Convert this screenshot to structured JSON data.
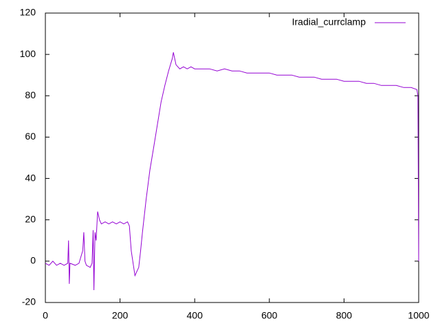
{
  "chart_data": {
    "type": "line",
    "x": [
      0,
      10,
      20,
      30,
      40,
      50,
      60,
      62,
      64,
      66,
      80,
      90,
      100,
      103,
      106,
      110,
      120,
      125,
      128,
      130,
      133,
      136,
      140,
      145,
      150,
      160,
      170,
      180,
      190,
      200,
      210,
      220,
      225,
      230,
      240,
      245,
      250,
      255,
      260,
      270,
      280,
      290,
      300,
      310,
      320,
      330,
      340,
      343,
      350,
      360,
      370,
      380,
      390,
      400,
      420,
      440,
      460,
      480,
      500,
      520,
      540,
      560,
      580,
      600,
      620,
      640,
      660,
      680,
      700,
      720,
      740,
      760,
      780,
      800,
      820,
      840,
      860,
      880,
      900,
      920,
      940,
      960,
      980,
      995,
      998,
      1000
    ],
    "series": [
      {
        "name": "Iradial_currclamp",
        "color": "#9400d3",
        "values": [
          -1,
          -2,
          0,
          -2,
          -1,
          -2,
          -1,
          10,
          -11,
          -1,
          -2,
          -1,
          5,
          14,
          0,
          -2,
          -3,
          -1,
          15,
          -14,
          14,
          10,
          24,
          20,
          18,
          19,
          18,
          19,
          18,
          19,
          18,
          19,
          17,
          5,
          -7,
          -5,
          -3,
          5,
          14,
          30,
          44,
          55,
          66,
          77,
          85,
          92,
          98,
          101,
          95,
          93,
          94,
          93,
          94,
          93,
          93,
          93,
          92,
          93,
          92,
          92,
          91,
          91,
          91,
          91,
          90,
          90,
          90,
          89,
          89,
          89,
          88,
          88,
          88,
          87,
          87,
          87,
          86,
          86,
          85,
          85,
          85,
          84,
          84,
          83,
          80,
          0
        ]
      }
    ],
    "xlim": [
      0,
      1000
    ],
    "xticks": [
      0,
      200,
      400,
      600,
      800,
      1000
    ],
    "ylim": [
      -20,
      120
    ],
    "yticks": [
      -20,
      0,
      20,
      40,
      60,
      80,
      100,
      120
    ],
    "legend": "top-right"
  }
}
